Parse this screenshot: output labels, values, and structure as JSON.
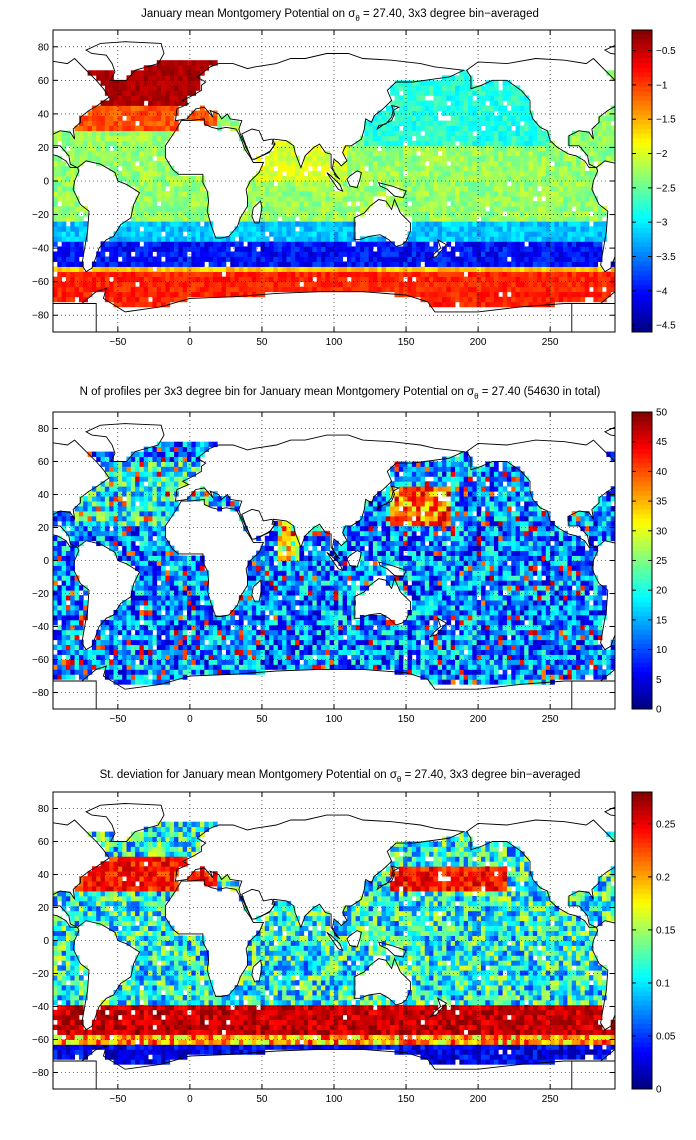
{
  "chart_data": [
    {
      "type": "heatmap",
      "title_pre": "January mean Montgomery Potential on ",
      "title_sym": "σ",
      "title_sub": "θ",
      "title_post": " = 27.40, 3x3 degree bin−averaged",
      "x_ticks": [
        "−50",
        "0",
        "50",
        "100",
        "150",
        "200",
        "250"
      ],
      "x_tick_values": [
        -50,
        0,
        50,
        100,
        150,
        200,
        250
      ],
      "y_ticks": [
        "80",
        "60",
        "40",
        "20",
        "0",
        "−20",
        "−40",
        "−60",
        "−80"
      ],
      "y_tick_values": [
        80,
        60,
        40,
        20,
        0,
        -20,
        -40,
        -60,
        -80
      ],
      "xlim": [
        -95,
        295
      ],
      "ylim": [
        -90,
        90
      ],
      "colorbar_ticks": [
        "−0.5",
        "−1",
        "−1.5",
        "−2",
        "−2.5",
        "−3",
        "−3.5",
        "−4",
        "−4.5"
      ],
      "colorbar_values": [
        -0.5,
        -1,
        -1.5,
        -2,
        -2.5,
        -3,
        -3.5,
        -4,
        -4.5
      ],
      "clim": [
        -4.6,
        -0.2
      ],
      "colormap": "jet",
      "grid": "dotted",
      "field": "montgomery"
    },
    {
      "type": "heatmap",
      "title_pre": "N of profiles per 3x3 degree bin for January mean Montgomery Potential on ",
      "title_sym": "σ",
      "title_sub": "θ",
      "title_post": " = 27.40 (54630 in total)",
      "x_ticks": [
        "−50",
        "0",
        "50",
        "100",
        "150",
        "200",
        "250"
      ],
      "x_tick_values": [
        -50,
        0,
        50,
        100,
        150,
        200,
        250
      ],
      "y_ticks": [
        "80",
        "60",
        "40",
        "20",
        "0",
        "−20",
        "−40",
        "−60",
        "−80"
      ],
      "y_tick_values": [
        80,
        60,
        40,
        20,
        0,
        -20,
        -40,
        -60,
        -80
      ],
      "xlim": [
        -95,
        295
      ],
      "ylim": [
        -90,
        90
      ],
      "colorbar_ticks": [
        "50",
        "45",
        "40",
        "35",
        "30",
        "25",
        "20",
        "15",
        "10",
        "5",
        "0"
      ],
      "colorbar_values": [
        50,
        45,
        40,
        35,
        30,
        25,
        20,
        15,
        10,
        5,
        0
      ],
      "clim": [
        0,
        50
      ],
      "colormap": "jet",
      "grid": "dotted",
      "field": "counts"
    },
    {
      "type": "heatmap",
      "title_pre": "St. deviation for January mean Montgomery Potential on ",
      "title_sym": "σ",
      "title_sub": "θ",
      "title_post": " = 27.40, 3x3 degree bin−averaged",
      "x_ticks": [
        "−50",
        "0",
        "50",
        "100",
        "150",
        "200",
        "250"
      ],
      "x_tick_values": [
        -50,
        0,
        50,
        100,
        150,
        200,
        250
      ],
      "y_ticks": [
        "80",
        "60",
        "40",
        "20",
        "0",
        "−20",
        "−40",
        "−60",
        "−80"
      ],
      "y_tick_values": [
        80,
        60,
        40,
        20,
        0,
        -20,
        -40,
        -60,
        -80
      ],
      "xlim": [
        -95,
        295
      ],
      "ylim": [
        -90,
        90
      ],
      "colorbar_ticks": [
        "0.25",
        "0.2",
        "0.15",
        "0.1",
        "0.05",
        "0"
      ],
      "colorbar_values": [
        0.25,
        0.2,
        0.15,
        0.1,
        0.05,
        0
      ],
      "clim": [
        0,
        0.28
      ],
      "colormap": "jet",
      "grid": "dotted",
      "field": "stdev"
    }
  ]
}
